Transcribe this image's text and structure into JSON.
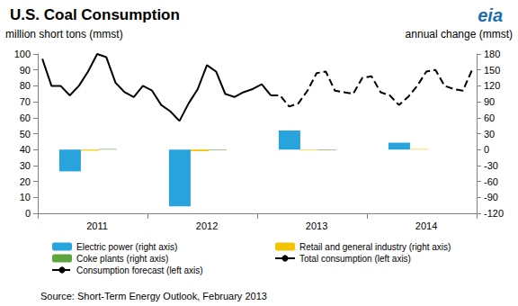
{
  "chart_data": {
    "type": "line",
    "title": "U.S. Coal Consumption",
    "y_label": "million short tons (mmst)",
    "y2_label": "annual change (mmst)",
    "logo": "eia",
    "source": "Source: Short-Term Energy Outlook, February 2013",
    "categories": [
      null,
      null,
      null,
      null,
      null,
      null,
      "2011",
      null,
      null,
      null,
      null,
      null,
      null,
      null,
      null,
      null,
      null,
      null,
      "2012",
      null,
      null,
      null,
      null,
      null,
      null,
      null,
      null,
      null,
      null,
      null,
      "2013",
      null,
      null,
      null,
      null,
      null,
      null,
      null,
      null,
      null,
      null,
      null,
      "2014",
      null,
      null,
      null,
      null,
      null
    ],
    "series": [
      {
        "name": "Electric power (right axis)",
        "type": "bar",
        "axis": "y2",
        "color": "#29a3dc",
        "values": [
          null,
          null,
          null,
          null,
          null,
          -41,
          null,
          null,
          null,
          null,
          null,
          null,
          null,
          null,
          null,
          null,
          null,
          -107,
          null,
          null,
          null,
          null,
          null,
          null,
          null,
          null,
          null,
          null,
          null,
          36,
          null,
          null,
          null,
          null,
          null,
          null,
          null,
          null,
          null,
          null,
          null,
          13,
          null,
          null,
          null,
          null,
          null,
          null
        ]
      },
      {
        "name": "Retail and general industry (right axis)",
        "type": "bar",
        "axis": "y2",
        "color": "#f5c400",
        "values": [
          null,
          null,
          null,
          null,
          null,
          -2,
          null,
          null,
          null,
          null,
          null,
          null,
          null,
          null,
          null,
          null,
          null,
          -3,
          null,
          null,
          null,
          null,
          null,
          null,
          null,
          null,
          null,
          null,
          null,
          -1,
          null,
          null,
          null,
          null,
          null,
          null,
          null,
          null,
          null,
          null,
          null,
          1,
          null,
          null,
          null,
          null,
          null,
          null
        ]
      },
      {
        "name": "Coke plants (right axis)",
        "type": "bar",
        "axis": "y2",
        "color": "#5da53d",
        "values": [
          null,
          null,
          null,
          null,
          null,
          1,
          null,
          null,
          null,
          null,
          null,
          null,
          null,
          null,
          null,
          null,
          null,
          -1,
          null,
          null,
          null,
          null,
          null,
          null,
          null,
          null,
          null,
          null,
          null,
          -1,
          null,
          null,
          null,
          null,
          null,
          null,
          null,
          null,
          null,
          null,
          null,
          0,
          null,
          null,
          null,
          null,
          null,
          null
        ]
      },
      {
        "name": "Total consumption (left axis)",
        "type": "line",
        "color": "#000000",
        "line_style": "solid",
        "values": [
          97,
          80,
          80,
          74,
          80,
          89,
          100,
          98,
          82,
          76,
          73,
          80,
          77,
          68,
          64,
          58,
          69,
          78,
          93,
          89,
          75,
          73,
          76,
          78,
          81,
          74,
          null,
          null,
          null,
          null,
          null,
          null,
          null,
          null,
          null,
          null,
          null,
          null,
          null,
          null,
          null,
          null,
          null,
          null,
          null,
          null,
          null,
          null
        ]
      },
      {
        "name": "Consumption forecast (left axis)",
        "type": "line",
        "color": "#000000",
        "line_style": "dashed",
        "values": [
          null,
          null,
          null,
          null,
          null,
          null,
          null,
          null,
          null,
          null,
          null,
          null,
          null,
          null,
          null,
          null,
          null,
          null,
          null,
          null,
          null,
          null,
          null,
          null,
          null,
          74,
          74,
          67,
          69,
          77,
          88,
          89,
          77,
          76,
          75,
          85,
          86,
          76,
          74,
          68,
          73,
          80,
          89,
          90,
          80,
          78,
          77,
          90
        ]
      }
    ],
    "ylim": [
      0,
      100
    ],
    "yticks": [
      0,
      10,
      20,
      30,
      40,
      50,
      60,
      70,
      80,
      90,
      100
    ],
    "y2lim": [
      -120,
      180
    ],
    "y2ticks": [
      -120,
      -90,
      -60,
      -30,
      0,
      30,
      60,
      90,
      120,
      150,
      180
    ],
    "legend": "bottom",
    "grid": false
  }
}
